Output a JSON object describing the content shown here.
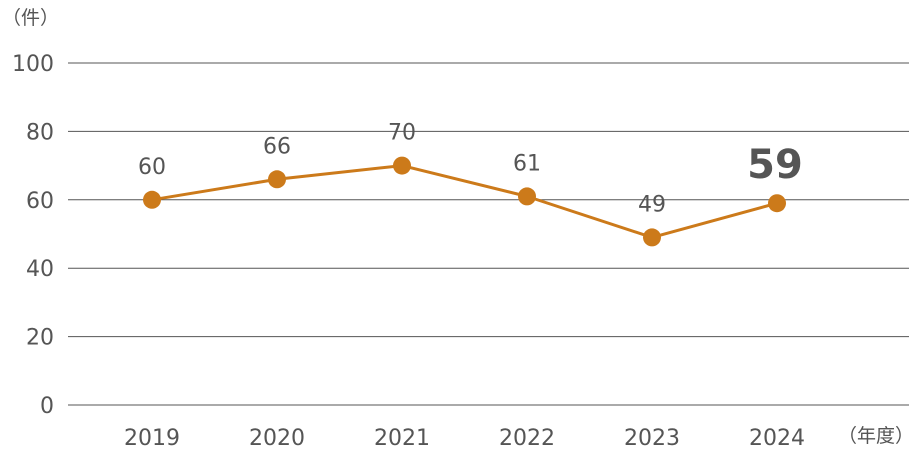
{
  "chart_data": {
    "type": "line",
    "categories": [
      "2019",
      "2020",
      "2021",
      "2022",
      "2023",
      "2024"
    ],
    "series": [
      {
        "values": [
          60,
          66,
          70,
          61,
          49,
          59
        ]
      }
    ],
    "data_labels": [
      "60",
      "66",
      "70",
      "61",
      "49",
      "59"
    ],
    "highlight_index": 5,
    "y_unit": "（件）",
    "x_unit": "（年度）",
    "ylim": [
      0,
      100
    ],
    "yticks": [
      0,
      20,
      40,
      60,
      80,
      100
    ],
    "grid": true,
    "line_color": "#CC7A1A",
    "highlight_color": "#CC7A1A",
    "gridline_color": "#555555",
    "text_color": "#555555"
  }
}
